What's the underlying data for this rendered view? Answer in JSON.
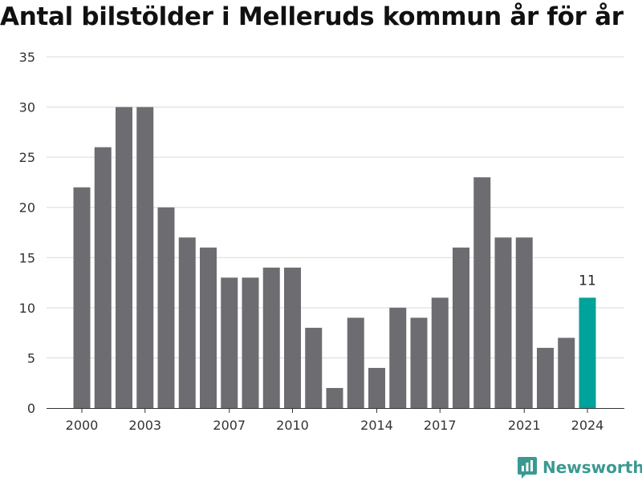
{
  "chart_data": {
    "type": "bar",
    "title": "Antal bilstölder i Melleruds kommun år för år",
    "xlabel": "",
    "ylabel": "",
    "categories": [
      "2000",
      "2001",
      "2002",
      "2003",
      "2004",
      "2005",
      "2006",
      "2007",
      "2008",
      "2009",
      "2010",
      "2011",
      "2012",
      "2013",
      "2014",
      "2015",
      "2016",
      "2017",
      "2018",
      "2019",
      "2020",
      "2021",
      "2022",
      "2023",
      "2024"
    ],
    "values": [
      22,
      26,
      30,
      30,
      20,
      17,
      16,
      13,
      13,
      14,
      14,
      8,
      2,
      9,
      4,
      10,
      9,
      11,
      16,
      23,
      17,
      17,
      6,
      7,
      11
    ],
    "x_tick_labels": [
      "2000",
      "2003",
      "2007",
      "2010",
      "2014",
      "2017",
      "2021",
      "2024"
    ],
    "y_ticks": [
      "0",
      "5",
      "10",
      "15",
      "20",
      "25",
      "30",
      "35"
    ],
    "ylim": [
      0,
      35
    ],
    "highlight": {
      "category": "2024",
      "label": "11"
    },
    "grid": true,
    "colors": {
      "bar": "#6d6c71",
      "highlight": "#00a39a",
      "grid": "#d9d9d9"
    }
  },
  "brand": {
    "name": "Newsworthy",
    "icon": "newsworthy-logo-icon",
    "color": "#3a9a92"
  }
}
